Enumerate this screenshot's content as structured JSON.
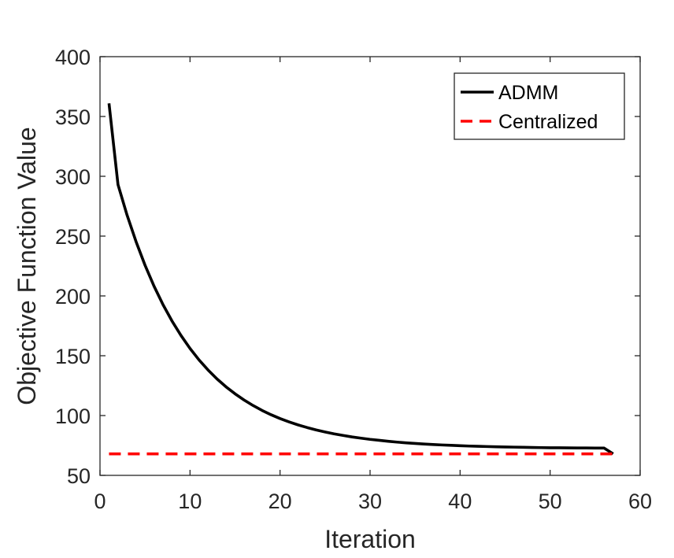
{
  "chart_data": {
    "type": "line",
    "title": "",
    "xlabel": "Iteration",
    "ylabel": "Objective Function Value",
    "xlim": [
      0,
      60
    ],
    "ylim": [
      50,
      400
    ],
    "xticks": [
      0,
      10,
      20,
      30,
      40,
      50,
      60
    ],
    "yticks": [
      50,
      100,
      150,
      200,
      250,
      300,
      350,
      400
    ],
    "grid": false,
    "legend_position": "top-right",
    "series": [
      {
        "name": "ADMM",
        "color": "#000000",
        "style": "solid",
        "x": [
          1,
          2,
          3,
          4,
          5,
          6,
          7,
          8,
          9,
          10,
          11,
          12,
          13,
          14,
          15,
          16,
          17,
          18,
          19,
          20,
          21,
          22,
          23,
          24,
          25,
          26,
          27,
          28,
          29,
          30,
          31,
          32,
          33,
          34,
          35,
          36,
          37,
          38,
          39,
          40,
          41,
          42,
          43,
          44,
          45,
          46,
          47,
          48,
          49,
          50,
          51,
          52,
          53,
          54,
          55,
          56,
          57
        ],
        "y": [
          361,
          293,
          267.7,
          245.5,
          225.7,
          208.2,
          192.7,
          179.0,
          166.9,
          156.1,
          146.5,
          138.1,
          130.6,
          124.0,
          118.2,
          113.0,
          108.4,
          104.3,
          100.7,
          97.5,
          94.7,
          92.2,
          90.0,
          88.0,
          86.3,
          84.7,
          83.4,
          82.1,
          81.1,
          80.1,
          79.3,
          78.5,
          77.8,
          77.2,
          76.7,
          76.2,
          75.8,
          75.4,
          75.1,
          74.8,
          74.5,
          74.3,
          74.1,
          73.9,
          73.7,
          73.6,
          73.5,
          73.3,
          73.2,
          73.1,
          73.1,
          73.0,
          72.9,
          72.9,
          72.8,
          72.8,
          68
        ]
      },
      {
        "name": "Centralized",
        "color": "#ff0000",
        "style": "dashed",
        "x": [
          1,
          57
        ],
        "y": [
          68,
          68
        ]
      }
    ]
  }
}
